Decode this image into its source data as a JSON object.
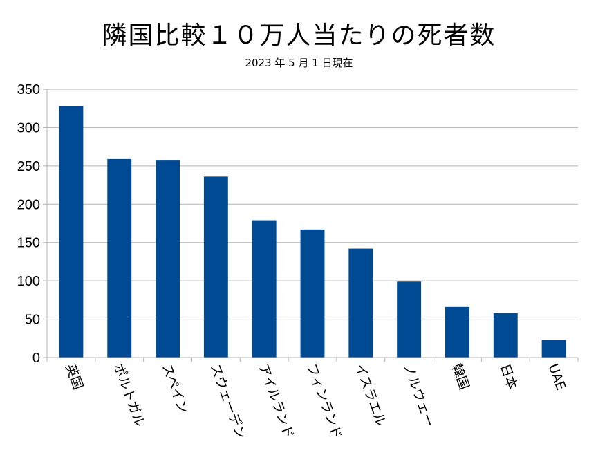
{
  "chart_data": {
    "type": "bar",
    "title": "隣国比較１０万人当たりの死者数",
    "subtitle": "2023 年 5 月 1 日現在",
    "categories": [
      "英国",
      "ポルトガル",
      "スペイン",
      "スウェーデン",
      "アイルランド",
      "フィンランド",
      "イスラエル",
      "ノルウェー",
      "韓国",
      "日本",
      "UAE"
    ],
    "values": [
      328,
      259,
      257,
      236,
      179,
      167,
      142,
      99,
      66,
      58,
      23
    ],
    "ylim": [
      0,
      350
    ],
    "yticks": [
      0,
      50,
      100,
      150,
      200,
      250,
      300,
      350
    ],
    "grid": true,
    "legend": "none",
    "bar_color": "#004a93"
  }
}
